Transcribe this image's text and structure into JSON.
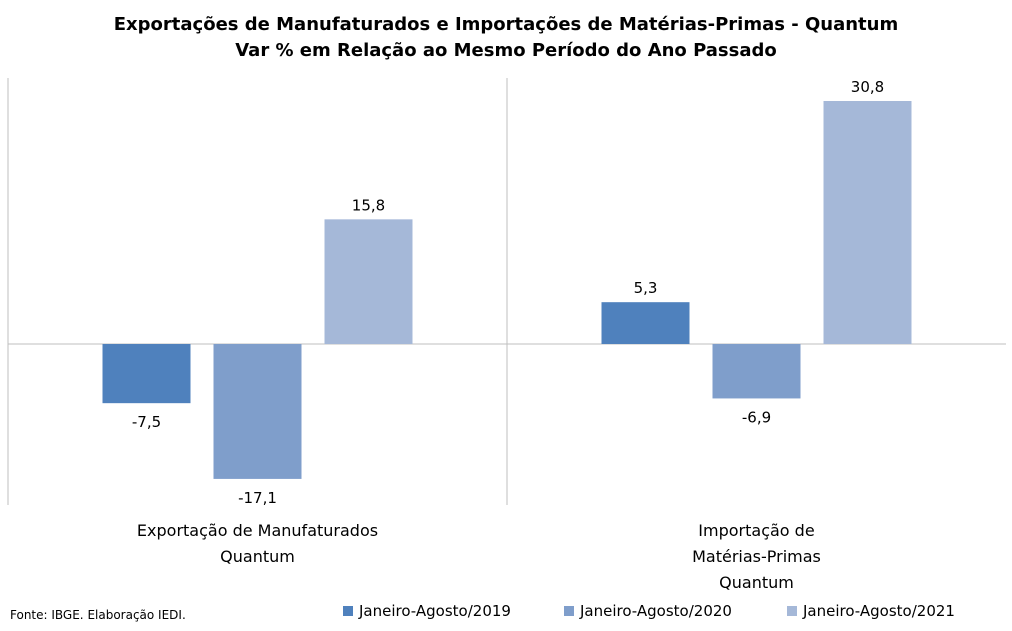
{
  "chart_data": {
    "type": "bar",
    "title": "Exportações de Manufaturados e Importações de Matérias-Primas - Quantum",
    "subtitle": "Var % em Relação ao Mesmo Período do Ano Passado",
    "categories": [
      [
        "Exportação de Manufaturados",
        "Quantum"
      ],
      [
        "Importação de",
        "Matérias-Primas",
        "Quantum"
      ]
    ],
    "series": [
      {
        "name": "Janeiro-Agosto/2019",
        "values": [
          -7.5,
          5.3
        ],
        "labels": [
          "-7,5",
          "5,3"
        ],
        "color": "#4f81bd"
      },
      {
        "name": "Janeiro-Agosto/2020",
        "values": [
          -17.1,
          -6.9
        ],
        "labels": [
          "-17,1",
          "-6,9"
        ],
        "color": "#7f9ecb"
      },
      {
        "name": "Janeiro-Agosto/2021",
        "values": [
          15.8,
          30.8
        ],
        "labels": [
          "15,8",
          "30,8"
        ],
        "color": "#a5b8d8"
      }
    ],
    "ylim": [
      -20,
      33
    ],
    "grid": false,
    "legend_position": "bottom"
  },
  "source": "Fonte: IBGE. Elaboração IEDI."
}
